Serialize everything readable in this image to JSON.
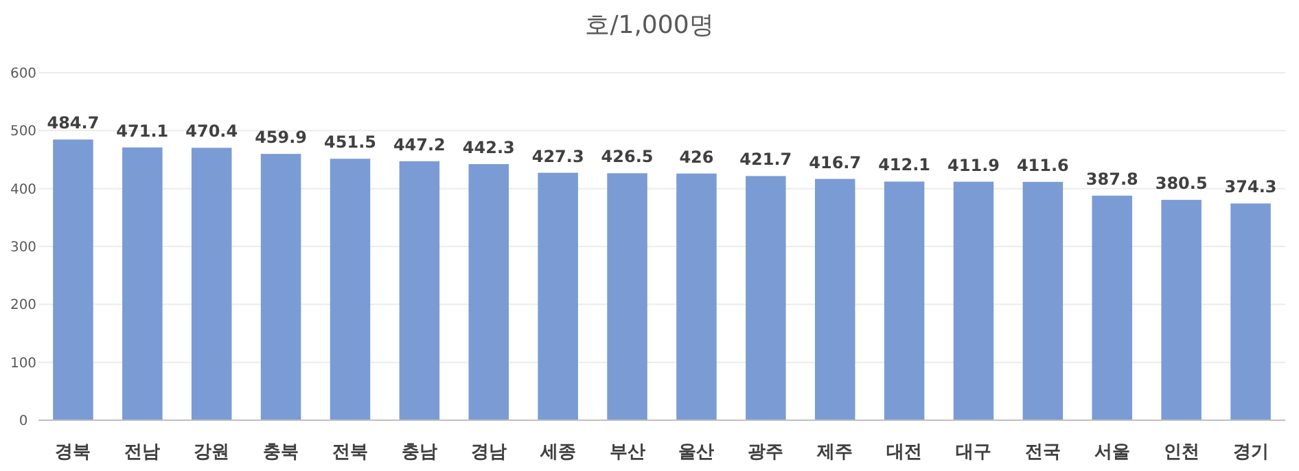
{
  "chart_data": {
    "type": "bar",
    "title": "호/1,000명",
    "categories": [
      "경북",
      "전남",
      "강원",
      "충북",
      "전북",
      "충남",
      "경남",
      "세종",
      "부산",
      "울산",
      "광주",
      "제주",
      "대전",
      "대구",
      "전국",
      "서울",
      "인천",
      "경기"
    ],
    "values": [
      484.7,
      471.1,
      470.4,
      459.9,
      451.5,
      447.2,
      442.3,
      427.3,
      426.5,
      426,
      421.7,
      416.7,
      412.1,
      411.9,
      411.6,
      387.8,
      380.5,
      374.3
    ],
    "color": "#7b9bd4",
    "ylim": [
      0,
      600
    ],
    "yticks": [
      0,
      100,
      200,
      300,
      400,
      500,
      600
    ],
    "grid": "y",
    "data_labels": true
  }
}
